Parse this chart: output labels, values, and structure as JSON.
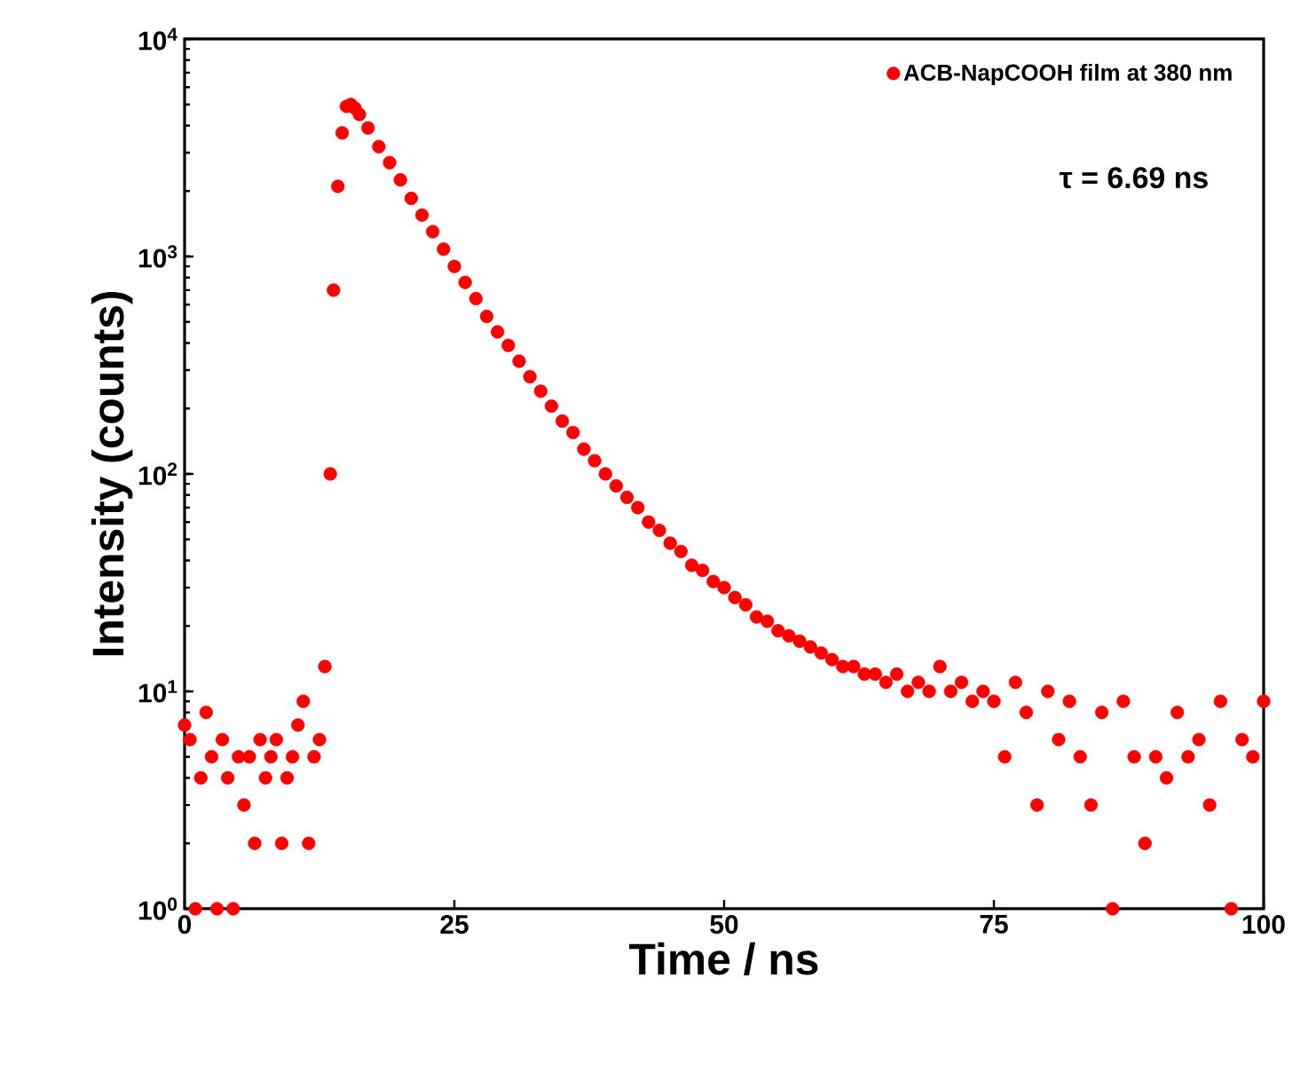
{
  "chart_data": {
    "type": "scatter",
    "xlabel": "Time / ns",
    "ylabel": "Intensity (counts)",
    "log": "y",
    "grid": false,
    "legend": "top right",
    "marker": "circle",
    "annotations": [
      "τ = 6.69 ns"
    ],
    "xlim": [
      0,
      100
    ],
    "xticks": [
      0,
      25,
      50,
      75,
      100
    ],
    "ylim": [
      1,
      10000
    ],
    "yticks": [
      {
        "value": 1,
        "label": "10$^{0}$"
      },
      {
        "value": 10,
        "label": "10$^{1}$"
      },
      {
        "value": 100,
        "label": "10$^{2}$"
      },
      {
        "value": 1000,
        "label": "10$^{3}$"
      },
      {
        "value": 10000,
        "label": "10$^{4}$"
      }
    ],
    "series": [
      {
        "name": "ACB-NapCOOH film at 380 nm",
        "color": "#ff0000",
        "x": [
          0,
          0.5,
          1,
          1.5,
          2,
          2.5,
          3,
          3.5,
          4,
          4.5,
          5,
          5.5,
          6,
          6.5,
          7,
          7.5,
          8,
          8.5,
          9,
          9.5,
          10,
          10.5,
          11,
          11.5,
          12,
          12.5,
          13,
          13.5,
          13.8,
          14.2,
          14.6,
          15,
          15.4,
          15.8,
          16.2,
          17,
          18,
          19,
          20,
          21,
          22,
          23,
          24,
          25,
          26,
          27,
          28,
          29,
          30,
          31,
          32,
          33,
          34,
          35,
          36,
          37,
          38,
          39,
          40,
          41,
          42,
          43,
          44,
          45,
          46,
          47,
          48,
          49,
          50,
          51,
          52,
          53,
          54,
          55,
          56,
          57,
          58,
          59,
          60,
          61,
          62,
          63,
          64,
          65,
          66,
          67,
          68,
          69,
          70,
          71,
          72,
          73,
          74,
          75,
          76,
          77,
          78,
          79,
          80,
          81,
          82,
          83,
          84,
          85,
          86,
          87,
          88,
          89,
          90,
          91,
          92,
          93,
          94,
          95,
          96,
          97,
          98,
          99,
          100
        ],
        "values": [
          7,
          6,
          1,
          4,
          8,
          5,
          1,
          6,
          4,
          1,
          5,
          3,
          5,
          2,
          6,
          4,
          5,
          6,
          2,
          4,
          5,
          7,
          9,
          2,
          5,
          6,
          13,
          100,
          700,
          2100,
          3700,
          4900,
          5000,
          4800,
          4500,
          3900,
          3200,
          2700,
          2250,
          1850,
          1550,
          1300,
          1080,
          900,
          760,
          640,
          530,
          450,
          390,
          330,
          280,
          240,
          205,
          175,
          155,
          130,
          115,
          100,
          88,
          78,
          70,
          60,
          55,
          48,
          44,
          38,
          36,
          32,
          30,
          27,
          25,
          22,
          21,
          19,
          18,
          17,
          16,
          15,
          14,
          13,
          13,
          12,
          12,
          11,
          12,
          10,
          11,
          10,
          13,
          10,
          11,
          9,
          10,
          9,
          5,
          11,
          8,
          3,
          10,
          6,
          9,
          5,
          3,
          8,
          1,
          9,
          5,
          2,
          5,
          4,
          8,
          5,
          6,
          3,
          9,
          1,
          6,
          5,
          9
        ]
      }
    ]
  }
}
